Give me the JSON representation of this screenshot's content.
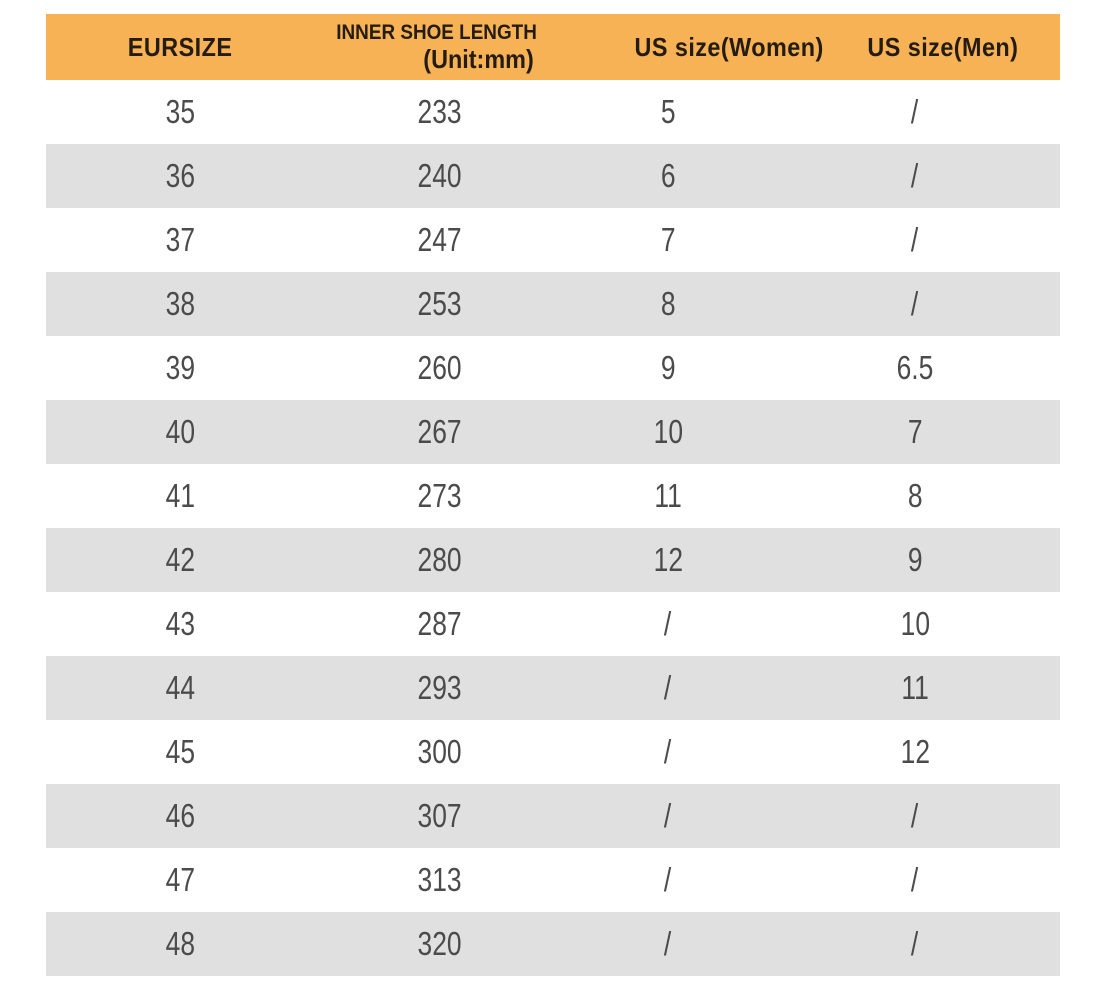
{
  "chart_data": {
    "type": "table",
    "columns": [
      "EURSIZE",
      "INNER SHOE LENGTH (Unit:mm)",
      "US size(Women)",
      "US size(Men)"
    ],
    "rows": [
      [
        "35",
        "233",
        "5",
        "/"
      ],
      [
        "36",
        "240",
        "6",
        "/"
      ],
      [
        "37",
        "247",
        "7",
        "/"
      ],
      [
        "38",
        "253",
        "8",
        "/"
      ],
      [
        "39",
        "260",
        "9",
        "6.5"
      ],
      [
        "40",
        "267",
        "10",
        "7"
      ],
      [
        "41",
        "273",
        "11",
        "8"
      ],
      [
        "42",
        "280",
        "12",
        "9"
      ],
      [
        "43",
        "287",
        "/",
        "10"
      ],
      [
        "44",
        "293",
        "/",
        "11"
      ],
      [
        "45",
        "300",
        "/",
        "12"
      ],
      [
        "46",
        "307",
        "/",
        "/"
      ],
      [
        "47",
        "313",
        "/",
        "/"
      ],
      [
        "48",
        "320",
        "/",
        "/"
      ]
    ],
    "layout": {
      "grid": "off",
      "zebra_striping": true,
      "header_position": "top"
    }
  },
  "table": {
    "header": {
      "eursize": "EURSIZE",
      "inner_length_line1": "INNER SHOE LENGTH",
      "inner_length_line2": "(Unit:mm)",
      "us_women": "US size(Women)",
      "us_men": "US size(Men)"
    }
  },
  "colors": {
    "header_bg": "#F6B254",
    "row_alt_bg": "#E0E0E0",
    "data_text": "#4B4B4B",
    "header_text": "#241C12"
  }
}
